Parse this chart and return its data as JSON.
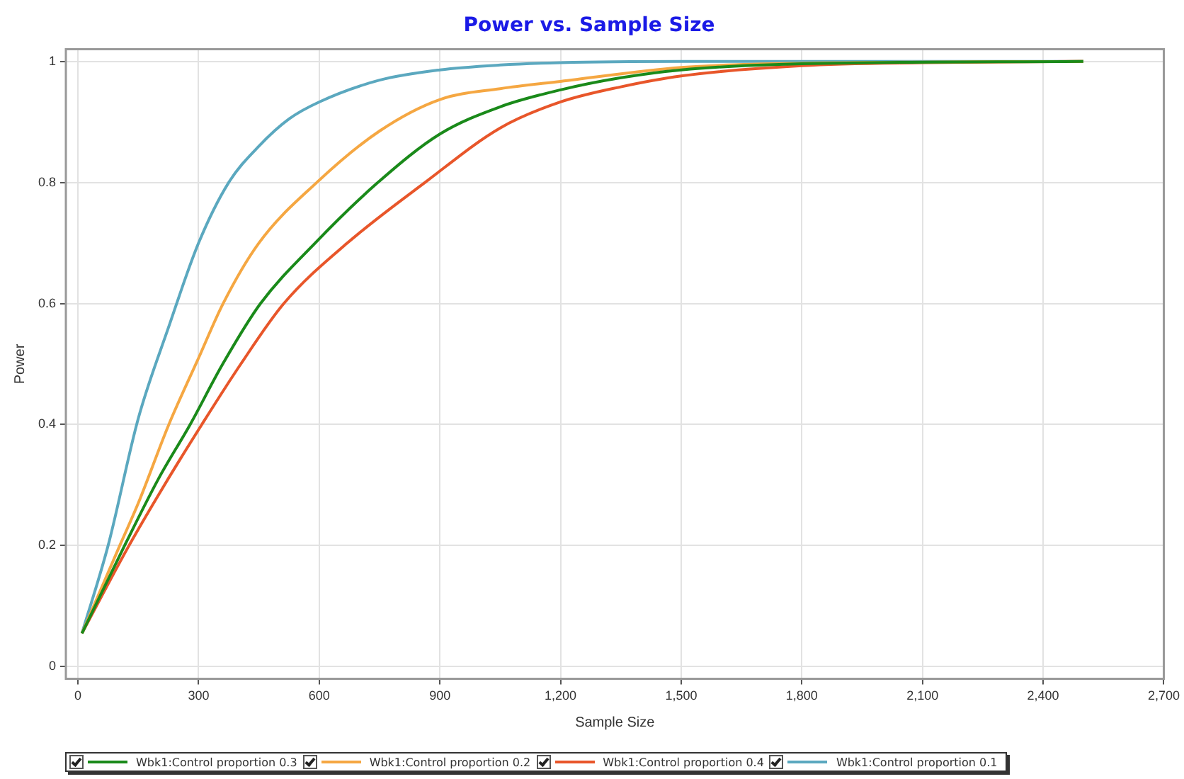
{
  "chart_data": {
    "type": "line",
    "title": "Power vs. Sample Size",
    "xlabel": "Sample Size",
    "ylabel": "Power",
    "xlim": [
      -30,
      2700
    ],
    "xticks": [
      0,
      300,
      600,
      900,
      {
        "value": 1200,
        "label": "1,200"
      },
      {
        "value": 1500,
        "label": "1,500"
      },
      {
        "value": 1800,
        "label": "1,800"
      },
      {
        "value": 2100,
        "label": "2,100"
      },
      {
        "value": 2400,
        "label": "2,400"
      },
      {
        "value": 2700,
        "label": "2,700"
      }
    ],
    "ylim": [
      -0.02,
      1.02
    ],
    "yticks": [
      0,
      0.2,
      0.4,
      0.6,
      0.8,
      1
    ],
    "grid": true,
    "legend": "bottom",
    "marker": "none",
    "line_style": "solid",
    "series": [
      {
        "name": "Wbk1:Control proportion 0.3",
        "color": "#1a8a1a",
        "x": [
          10,
          116,
          200,
          279,
          360,
          454,
          590,
          746,
          900,
          1050,
          1200,
          1350,
          1500,
          1800,
          2500
        ],
        "values": [
          0.055,
          0.2,
          0.31,
          0.4,
          0.5,
          0.6,
          0.7,
          0.8,
          0.88,
          0.925,
          0.953,
          0.973,
          0.986,
          0.996,
          1.0
        ]
      },
      {
        "name": "Wbk1:Control proportion 0.2",
        "color": "#f5a742",
        "x": [
          10,
          104,
          150,
          226,
          300,
          361,
          450,
          594,
          750,
          900,
          1050,
          1200,
          1500,
          1800,
          2500
        ],
        "values": [
          0.055,
          0.2,
          0.27,
          0.4,
          0.51,
          0.6,
          0.7,
          0.8,
          0.885,
          0.937,
          0.955,
          0.967,
          0.99,
          0.997,
          1.0
        ]
      },
      {
        "name": "Wbk1:Control proportion 0.4",
        "color": "#e8562a",
        "x": [
          10,
          127,
          215,
          308,
          405,
          512,
          670,
          863,
          1050,
          1200,
          1350,
          1500,
          1800,
          2100,
          2500
        ],
        "values": [
          0.055,
          0.2,
          0.3,
          0.4,
          0.5,
          0.6,
          0.7,
          0.8,
          0.89,
          0.933,
          0.958,
          0.976,
          0.993,
          0.998,
          1.0
        ]
      },
      {
        "name": "Wbk1:Control proportion 0.1",
        "color": "#5ba8bf",
        "x": [
          10,
          75,
          150,
          225,
          300,
          375,
          450,
          525,
          600,
          750,
          900,
          1050,
          1200,
          1500,
          2500
        ],
        "values": [
          0.055,
          0.2,
          0.41,
          0.56,
          0.7,
          0.8,
          0.86,
          0.905,
          0.933,
          0.969,
          0.986,
          0.994,
          0.998,
          1.0,
          1.0
        ]
      }
    ]
  }
}
